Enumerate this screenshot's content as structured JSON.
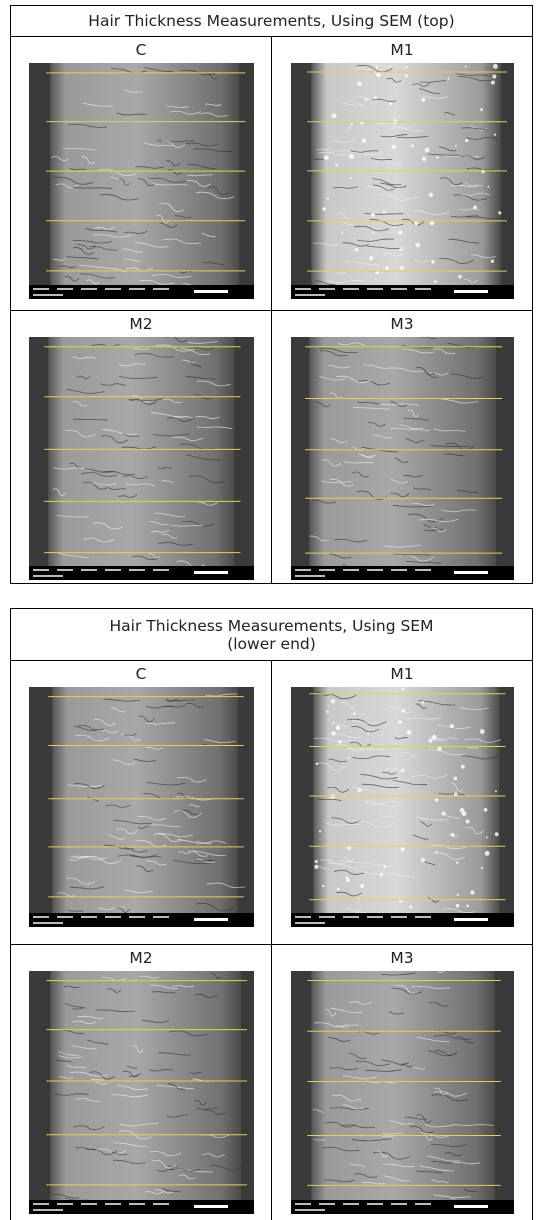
{
  "tables": [
    {
      "title": [
        "Hair Thickness Measurements, Using SEM (top)"
      ],
      "rows": [
        [
          "C",
          "M1"
        ],
        [
          "M2",
          "M3"
        ]
      ]
    },
    {
      "title": [
        "Hair Thickness Measurements, Using SEM",
        "(lower end)"
      ],
      "rows": [
        [
          "C",
          "M1"
        ],
        [
          "M2",
          "M3"
        ]
      ]
    }
  ]
}
